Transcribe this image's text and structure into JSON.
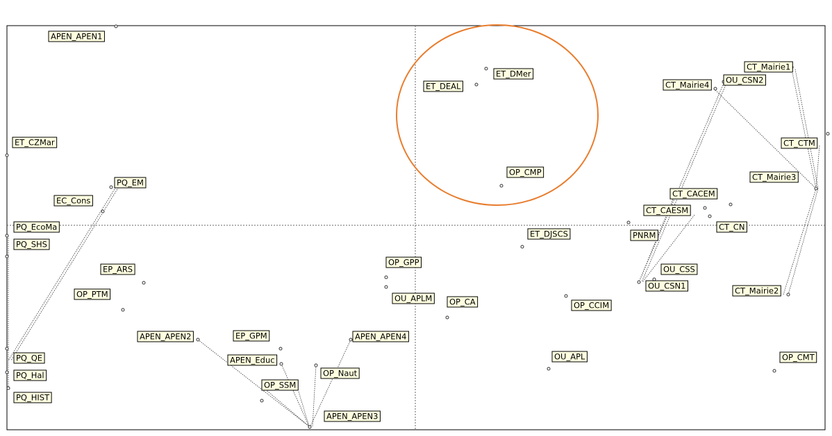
{
  "nodes": [
    {
      "label": "APEN_APEN1"
    },
    {
      "label": "ET_DEAL"
    },
    {
      "label": "ET_DMer"
    },
    {
      "label": "CT_Mairie1"
    },
    {
      "label": "OU_CSN2"
    },
    {
      "label": "CT_Mairie4"
    },
    {
      "label": "ET_CZMar"
    },
    {
      "label": "CT_CTM"
    },
    {
      "label": "OP_CMP"
    },
    {
      "label": "CT_Mairie3"
    },
    {
      "label": "PQ_EM"
    },
    {
      "label": "EC_Cons"
    },
    {
      "label": "CT_CACEM"
    },
    {
      "label": "CT_CAESM"
    },
    {
      "label": "PQ_EcoMa"
    },
    {
      "label": "CT_CN"
    },
    {
      "label": "PNRM"
    },
    {
      "label": "ET_DJSCS"
    },
    {
      "label": "PQ_SHS"
    },
    {
      "label": "OP_GPP"
    },
    {
      "label": "EP_ARS"
    },
    {
      "label": "OU_CSS"
    },
    {
      "label": "OU_CSN1"
    },
    {
      "label": "OP_PTM"
    },
    {
      "label": "OU_APLM"
    },
    {
      "label": "CT_Mairie2"
    },
    {
      "label": "OP_CA"
    },
    {
      "label": "OP_CCIM"
    },
    {
      "label": "APEN_APEN2"
    },
    {
      "label": "EP_GPM"
    },
    {
      "label": "APEN_APEN4"
    },
    {
      "label": "APEN_Educ"
    },
    {
      "label": "OU_APL"
    },
    {
      "label": "OP_CMT"
    },
    {
      "label": "PQ_QE"
    },
    {
      "label": "OP_Naut"
    },
    {
      "label": "PQ_Hal"
    },
    {
      "label": "OP_SSM"
    },
    {
      "label": "PQ_HIST"
    },
    {
      "label": "APEN_APEN3"
    }
  ]
}
